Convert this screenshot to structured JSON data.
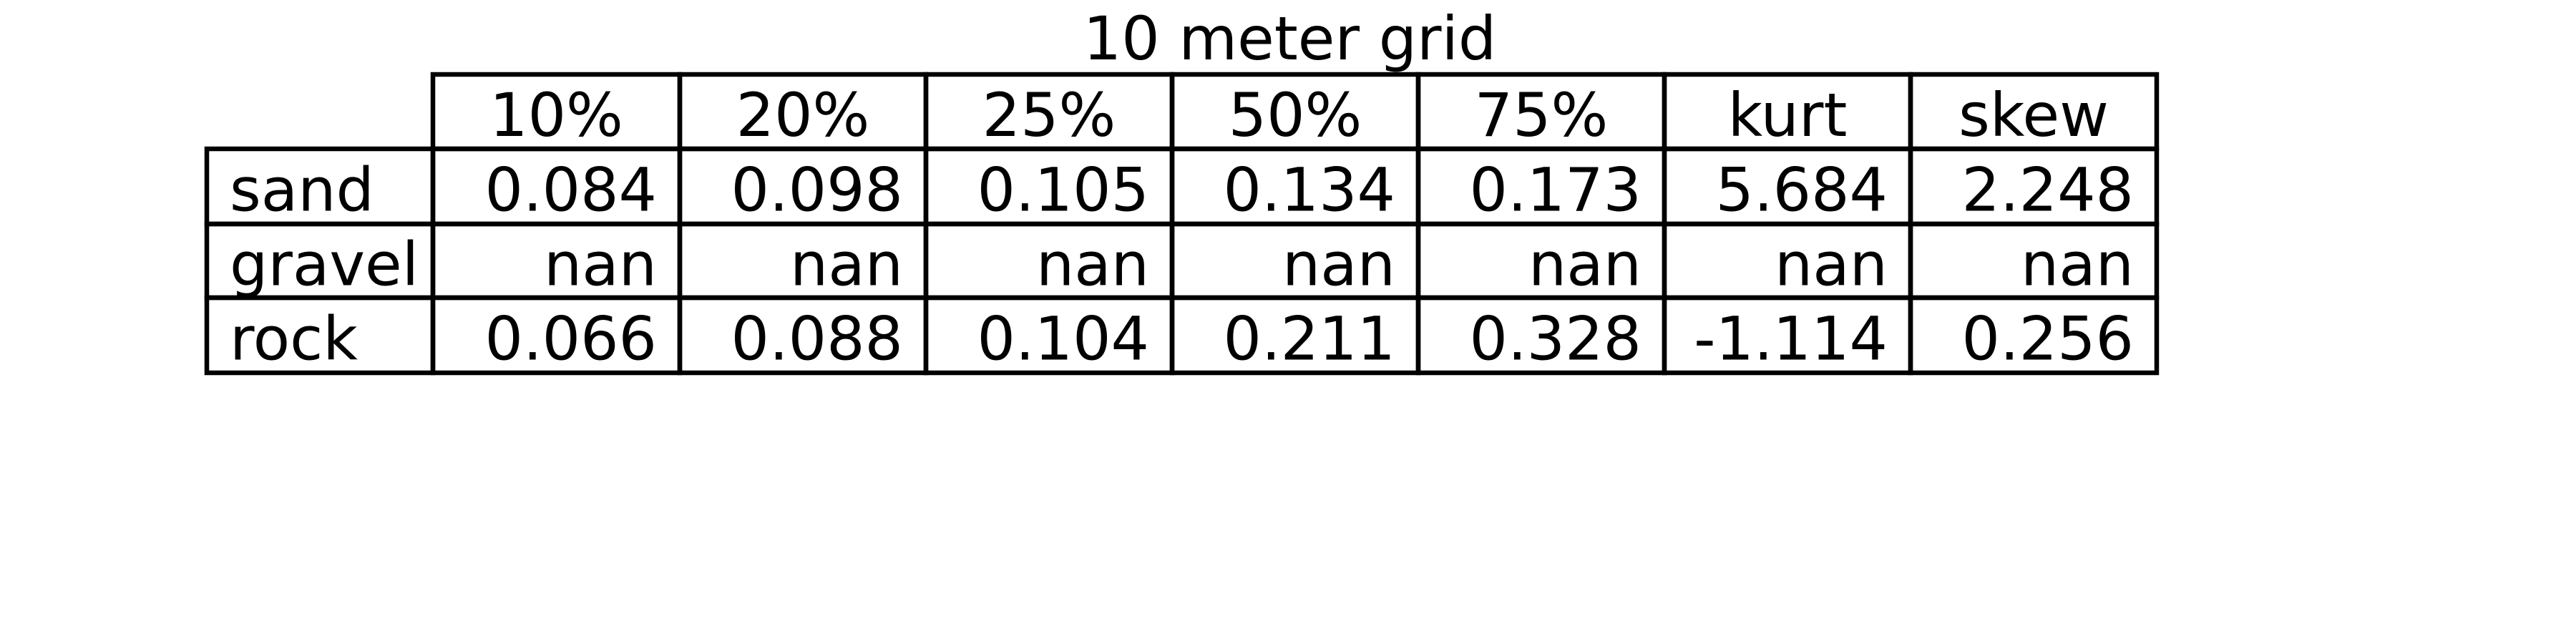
{
  "chart_data": {
    "type": "table",
    "title": "10 meter grid",
    "columns": [
      "10%",
      "20%",
      "25%",
      "50%",
      "75%",
      "kurt",
      "skew"
    ],
    "rows": [
      {
        "label": "sand",
        "values": [
          "0.084",
          "0.098",
          "0.105",
          "0.134",
          "0.173",
          "5.684",
          "2.248"
        ]
      },
      {
        "label": "gravel",
        "values": [
          "nan",
          "nan",
          "nan",
          "nan",
          "nan",
          "nan",
          "nan"
        ]
      },
      {
        "label": "rock",
        "values": [
          "0.066",
          "0.088",
          "0.104",
          "0.211",
          "0.328",
          "-1.114",
          "0.256"
        ]
      }
    ]
  }
}
